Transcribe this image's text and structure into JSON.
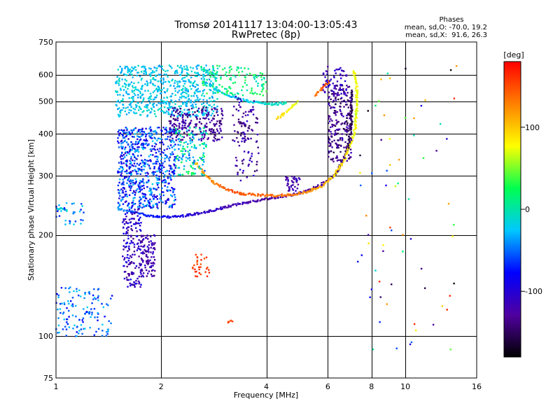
{
  "chart_data": {
    "type": "scatter",
    "title": "Tromsø 20141117 13:04:00-13:05:43",
    "subtitle": "RwPretec (8p)",
    "xlabel": "Frequency [MHz]",
    "ylabel": "Stationary phase Virtual Height [km]",
    "x_scale": "log",
    "y_scale": "log",
    "xlim": [
      1,
      16
    ],
    "ylim": [
      75,
      750
    ],
    "x_ticks": [
      1,
      2,
      4,
      6,
      8,
      10,
      16
    ],
    "y_ticks": [
      75,
      100,
      200,
      300,
      400,
      500,
      600,
      750
    ],
    "grid": true,
    "phases_info": {
      "title": "Phases",
      "line1": "mean, sd,O: -70.0, 19.2",
      "line2": "mean, sd,X:  91.6, 26.3"
    },
    "colorbar": {
      "label": "[deg]",
      "range": [
        -180,
        180
      ],
      "ticks": [
        100,
        0,
        -100
      ],
      "colors": [
        "#000000",
        "#5000a0",
        "#0000ff",
        "#00c8ff",
        "#00ff50",
        "#ffff00",
        "#ff8000",
        "#ff0000"
      ]
    },
    "series": [
      {
        "traces": [
          {
            "points": [
              [
                1.5,
                240
              ],
              [
                1.58,
                236
              ],
              [
                1.7,
                233
              ],
              [
                1.82,
                229
              ],
              [
                2.0,
                226
              ],
              [
                2.25,
                227
              ],
              [
                2.5,
                231
              ],
              [
                2.8,
                236
              ],
              [
                3.1,
                243
              ],
              [
                3.5,
                250
              ],
              [
                4.0,
                256
              ],
              [
                4.6,
                262
              ],
              [
                5.2,
                270
              ],
              [
                5.7,
                281
              ],
              [
                6.1,
                294
              ],
              [
                6.4,
                310
              ],
              [
                6.7,
                340
              ],
              [
                6.9,
                380
              ],
              [
                7.0,
                430
              ],
              [
                7.0,
                480
              ],
              [
                7.0,
                540
              ]
            ],
            "phases": [
              -40,
              -50,
              -60,
              -70,
              -80,
              -95,
              -105,
              -110,
              -115,
              -120,
              -125,
              -125,
              -125,
              -130,
              -135,
              -140,
              -145,
              -150,
              -155,
              -155,
              -150
            ],
            "jitter": 3
          },
          {
            "points": [
              [
                2.5,
                330
              ],
              [
                2.65,
                305
              ],
              [
                2.85,
                285
              ],
              [
                3.1,
                272
              ],
              [
                3.4,
                265
              ],
              [
                3.8,
                263
              ],
              [
                4.3,
                262
              ],
              [
                4.8,
                264
              ],
              [
                5.3,
                270
              ],
              [
                5.8,
                280
              ],
              [
                6.2,
                298
              ],
              [
                6.5,
                320
              ],
              [
                6.8,
                350
              ],
              [
                7.0,
                380
              ],
              [
                7.2,
                420
              ],
              [
                7.25,
                480
              ],
              [
                7.25,
                550
              ],
              [
                7.1,
                620
              ]
            ],
            "phases": [
              110,
              120,
              130,
              145,
              150,
              140,
              135,
              130,
              120,
              110,
              95,
              90,
              85,
              80,
              75,
              70,
              75,
              80
            ],
            "jitter": 3
          },
          {
            "points": [
              [
                2.85,
                545
              ],
              [
                3.1,
                520
              ],
              [
                3.4,
                505
              ],
              [
                3.8,
                495
              ],
              [
                4.2,
                490
              ],
              [
                4.6,
                495
              ]
            ],
            "phases": [
              -20,
              -25,
              -20,
              -15,
              -10,
              -5
            ],
            "jitter": 3
          },
          {
            "points": [
              [
                4.3,
                445
              ],
              [
                4.5,
                460
              ],
              [
                4.7,
                478
              ],
              [
                4.9,
                500
              ]
            ],
            "phases": [
              90,
              85,
              80,
              75
            ],
            "jitter": 3
          },
          {
            "points": [
              [
                3.35,
                430
              ],
              [
                3.45,
                423
              ],
              [
                3.6,
                418
              ]
            ],
            "phases": [
              -140,
              -145,
              -150
            ],
            "jitter": 4
          },
          {
            "points": [
              [
                5.5,
                520
              ],
              [
                5.7,
                540
              ],
              [
                5.9,
                560
              ],
              [
                6.1,
                580
              ]
            ],
            "phases": [
              130,
              140,
              150,
              135
            ],
            "jitter": 3
          },
          {
            "points": [
              [
                3.1,
                110
              ],
              [
                3.15,
                111
              ],
              [
                3.2,
                110.5
              ]
            ],
            "phases": [
              150,
              155,
              160
            ],
            "jitter": 2
          },
          {
            "points": [
              [
                1.0,
                238
              ],
              [
                1.04,
                240
              ],
              [
                1.08,
                236
              ]
            ],
            "phases": [
              -20,
              -15,
              -10
            ],
            "jitter": 2
          }
        ],
        "clusters": [
          {
            "x": [
              1.48,
              2.9
            ],
            "y": [
              450,
              640
            ],
            "n": 650,
            "phase": [
              -40,
              -5
            ]
          },
          {
            "x": [
              2.6,
              4.0
            ],
            "y": [
              520,
              640
            ],
            "n": 130,
            "phase": [
              -15,
              40
            ]
          },
          {
            "x": [
              2.1,
              3.0
            ],
            "y": [
              380,
              480
            ],
            "n": 220,
            "phase": [
              -150,
              -110
            ]
          },
          {
            "x": [
              1.5,
              2.2
            ],
            "y": [
              240,
              420
            ],
            "n": 700,
            "phase": [
              -110,
              -20
            ]
          },
          {
            "x": [
              1.55,
              1.75
            ],
            "y": [
              140,
              240
            ],
            "n": 170,
            "phase": [
              -140,
              -80
            ]
          },
          {
            "x": [
              1.75,
              1.92
            ],
            "y": [
              150,
              200
            ],
            "n": 100,
            "phase": [
              -140,
              -100
            ]
          },
          {
            "x": [
              6.0,
              7.0
            ],
            "y": [
              330,
              560
            ],
            "n": 230,
            "phase": [
              -160,
              -110
            ]
          },
          {
            "x": [
              5.8,
              6.8
            ],
            "y": [
              520,
              640
            ],
            "n": 60,
            "phase": [
              -130,
              -90
            ]
          },
          {
            "x": [
              2.2,
              2.7
            ],
            "y": [
              300,
              420
            ],
            "n": 140,
            "phase": [
              -60,
              30
            ]
          },
          {
            "x": [
              3.2,
              3.8
            ],
            "y": [
              290,
              520
            ],
            "n": 100,
            "phase": [
              -150,
              -100
            ]
          },
          {
            "x": [
              1.0,
              1.45
            ],
            "y": [
              100,
              140
            ],
            "n": 130,
            "phase": [
              -80,
              -20
            ]
          },
          {
            "x": [
              1.0,
              1.2
            ],
            "y": [
              215,
              250
            ],
            "n": 30,
            "phase": [
              -80,
              -20
            ]
          },
          {
            "x": [
              2.45,
              2.75
            ],
            "y": [
              150,
              175
            ],
            "n": 30,
            "phase": [
              140,
              170
            ]
          },
          {
            "x": [
              4.5,
              5.0
            ],
            "y": [
              270,
              300
            ],
            "n": 40,
            "phase": [
              -140,
              -100
            ]
          },
          {
            "x": [
              7.3,
              14.0
            ],
            "y": [
              90,
              650
            ],
            "n": 70,
            "phase": [
              -180,
              180
            ]
          }
        ]
      }
    ]
  }
}
